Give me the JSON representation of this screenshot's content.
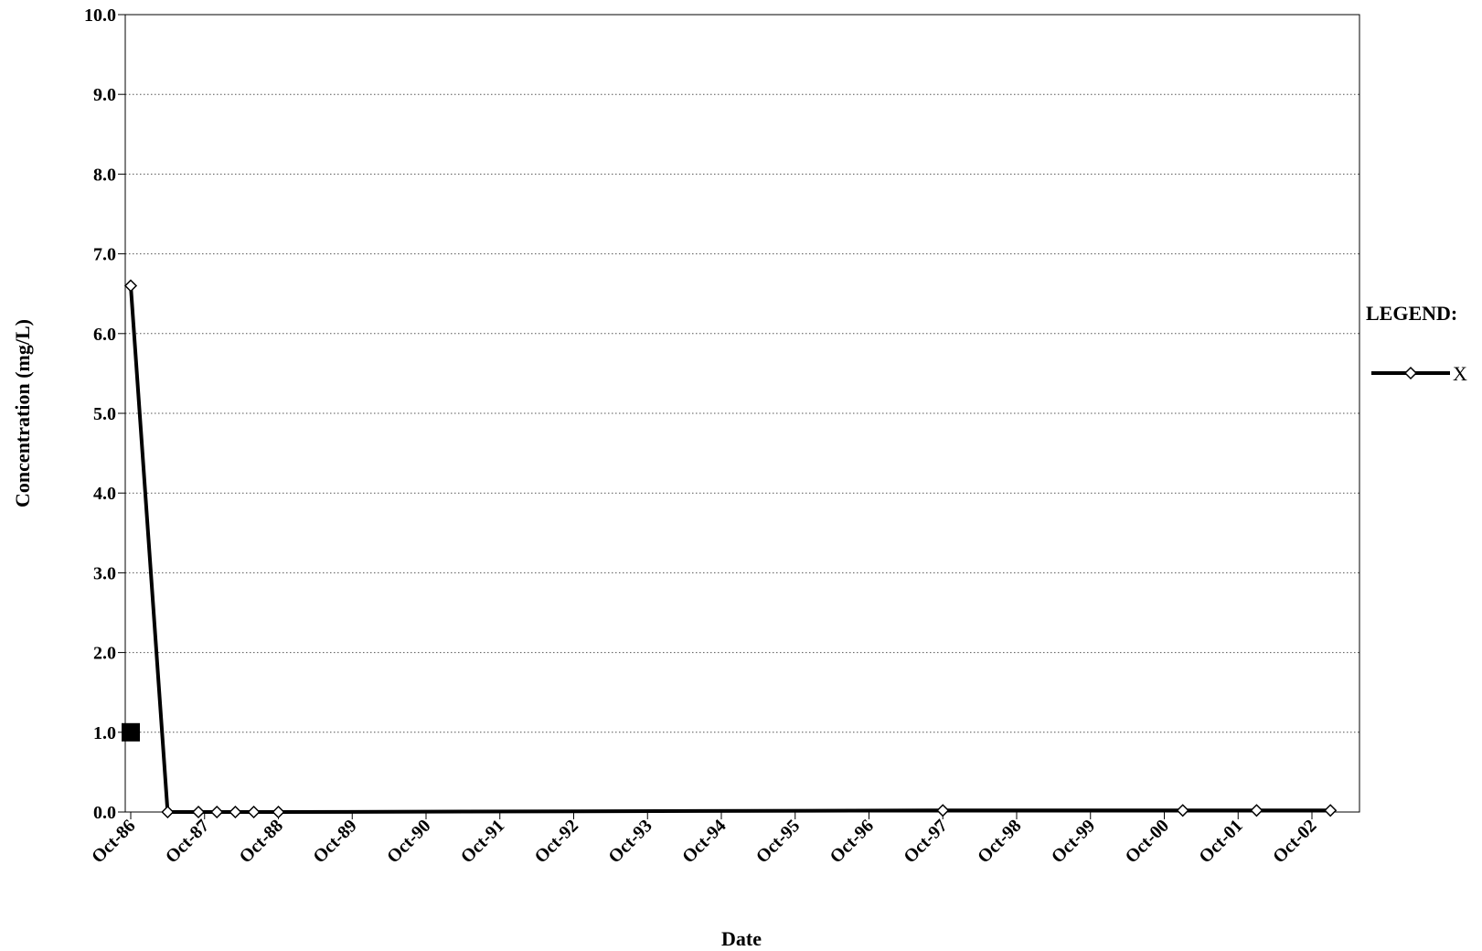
{
  "chart_data": {
    "type": "line",
    "title": "",
    "xlabel": "Date",
    "ylabel": "Concentration (mg/L)",
    "ylim": [
      0,
      10
    ],
    "y_ticks": [
      "0.0",
      "1.0",
      "2.0",
      "3.0",
      "4.0",
      "5.0",
      "6.0",
      "7.0",
      "8.0",
      "9.0",
      "10.0"
    ],
    "x_ticks": [
      "Oct-86",
      "Oct-87",
      "Oct-88",
      "Oct-89",
      "Oct-90",
      "Oct-91",
      "Oct-92",
      "Oct-93",
      "Oct-94",
      "Oct-95",
      "Oct-96",
      "Oct-97",
      "Oct-98",
      "Oct-99",
      "Oct-00",
      "Oct-01",
      "Oct-02"
    ],
    "grid": true,
    "legend_title": "LEGEND:",
    "legend_position": "right",
    "series": [
      {
        "name": "X",
        "color": "#000000",
        "marker": "open-diamond",
        "points": [
          {
            "x": "1986-10",
            "y": 6.6
          },
          {
            "x": "1987-04",
            "y": 0.0
          },
          {
            "x": "1987-09",
            "y": 0.0
          },
          {
            "x": "1987-12",
            "y": 0.0
          },
          {
            "x": "1988-03",
            "y": 0.0
          },
          {
            "x": "1988-06",
            "y": 0.0
          },
          {
            "x": "1988-10",
            "y": 0.0
          },
          {
            "x": "1997-10",
            "y": 0.02
          },
          {
            "x": "2001-01",
            "y": 0.02
          },
          {
            "x": "2002-01",
            "y": 0.02
          },
          {
            "x": "2003-01",
            "y": 0.02
          }
        ]
      }
    ],
    "annotations": [
      {
        "marker": "filled-square",
        "x": "1986-10",
        "y": 1.0,
        "color": "#000000"
      }
    ]
  }
}
